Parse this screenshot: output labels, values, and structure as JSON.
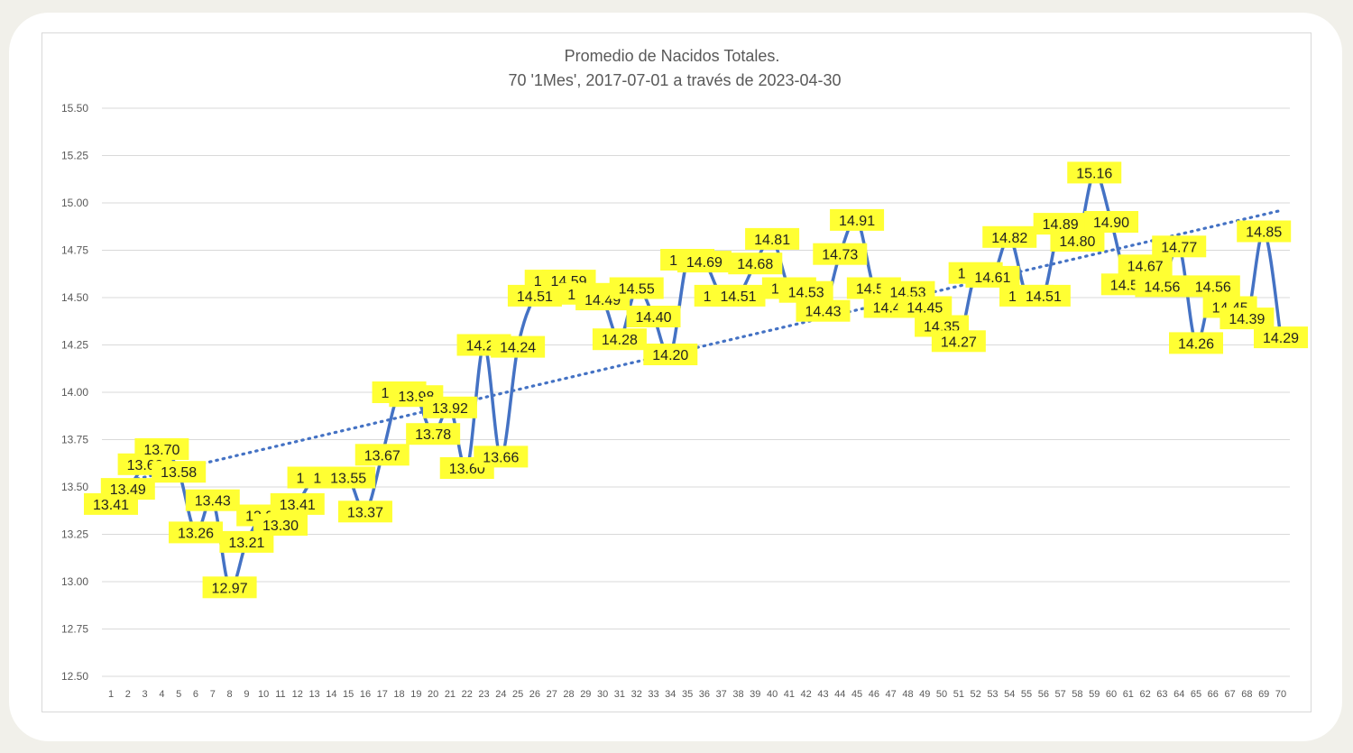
{
  "chart_data": {
    "type": "line",
    "title": "Promedio de Nacidos Totales.",
    "subtitle": "70 '1Mes', 2017-07-01 a través de 2023-04-30",
    "xlabel": "",
    "ylabel": "",
    "ylim": [
      12.5,
      15.5
    ],
    "ytick_step": 0.25,
    "ytick_labels": [
      "12.50",
      "12.75",
      "13.00",
      "13.25",
      "13.50",
      "13.75",
      "14.00",
      "14.25",
      "14.50",
      "14.75",
      "15.00",
      "15.25",
      "15.50"
    ],
    "grid": true,
    "legend": "none",
    "line_color": "#4472c4",
    "label_bg_color": "#ffff33",
    "categories": [
      "1",
      "2",
      "3",
      "4",
      "5",
      "6",
      "7",
      "8",
      "9",
      "10",
      "11",
      "12",
      "13",
      "14",
      "15",
      "16",
      "17",
      "18",
      "19",
      "20",
      "21",
      "22",
      "23",
      "24",
      "25",
      "26",
      "27",
      "28",
      "29",
      "30",
      "31",
      "32",
      "33",
      "34",
      "35",
      "36",
      "37",
      "38",
      "39",
      "40",
      "41",
      "42",
      "43",
      "44",
      "45",
      "46",
      "47",
      "48",
      "49",
      "50",
      "51",
      "52",
      "53",
      "54",
      "55",
      "56",
      "57",
      "58",
      "59",
      "60",
      "61",
      "62",
      "63",
      "64",
      "65",
      "66",
      "67",
      "68",
      "69",
      "70"
    ],
    "series": [
      {
        "values": [
          13.41,
          13.49,
          13.62,
          13.7,
          13.58,
          13.26,
          13.43,
          12.97,
          13.21,
          13.35,
          13.3,
          13.41,
          13.55,
          13.55,
          13.55,
          13.37,
          13.67,
          14.0,
          13.98,
          13.78,
          13.92,
          13.6,
          14.25,
          13.66,
          14.24,
          14.51,
          14.59,
          14.59,
          14.52,
          14.49,
          14.28,
          14.55,
          14.4,
          14.2,
          14.7,
          14.69,
          14.51,
          14.51,
          14.68,
          14.81,
          14.55,
          14.53,
          14.43,
          14.73,
          14.91,
          14.55,
          14.45,
          14.53,
          14.45,
          14.35,
          14.27,
          14.63,
          14.61,
          14.82,
          14.51,
          14.51,
          14.89,
          14.8,
          15.16,
          14.9,
          14.57,
          14.67,
          14.56,
          14.77,
          14.26,
          14.56,
          14.45,
          14.39,
          14.85,
          14.29
        ],
        "data_labels": [
          "13.41",
          "13.49",
          "13.62",
          "13.70",
          "13.58",
          "13.26",
          "13.43",
          "12.97",
          "13.21",
          "13.35",
          "13.30",
          "13.41",
          "13.55",
          "13.55",
          "13.55",
          "13.37",
          "13.67",
          "14.00",
          "13.98",
          "13.78",
          "13.92",
          "13.60",
          "14.25",
          "13.66",
          "14.24",
          "14.51",
          "14.59",
          "14.59",
          "14.52",
          "14.49",
          "14.28",
          "14.55",
          "14.40",
          "14.20",
          "14.70",
          "14.69",
          "14.51",
          "14.51",
          "14.68",
          "14.81",
          "14.55",
          "14.53",
          "14.43",
          "14.73",
          "14.91",
          "14.55",
          "14.45",
          "14.53",
          "14.45",
          "14.35",
          "14.27",
          "14.63",
          "14.61",
          "14.82",
          "14.51",
          "14.51",
          "14.89",
          "14.80",
          "15.16",
          "14.90",
          "14.57",
          "14.67",
          "14.56",
          "14.77",
          "14.26",
          "14.56",
          "14.45",
          "14.39",
          "14.85",
          "14.29"
        ]
      }
    ],
    "trendline": {
      "type": "linear",
      "style": "dotted",
      "start_value": 13.51,
      "end_value": 14.96
    }
  }
}
